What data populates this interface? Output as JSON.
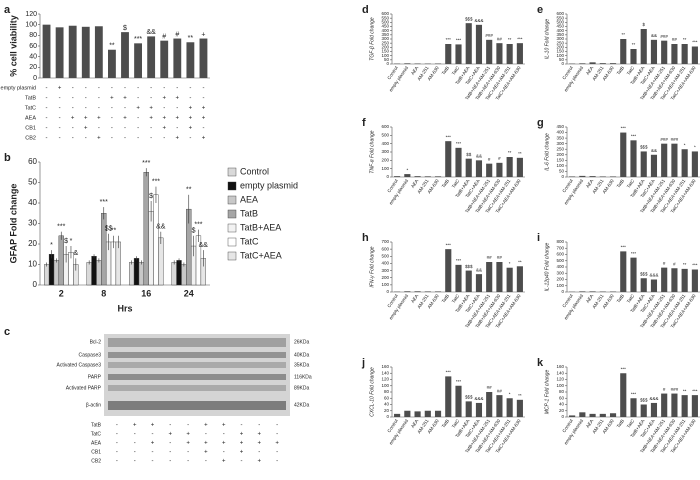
{
  "chart_data": [
    {
      "panel": "a",
      "type": "bar",
      "y_label": "% cell viability",
      "ylim": [
        0,
        120
      ],
      "yticks": [
        0,
        20,
        40,
        60,
        80,
        100,
        120
      ],
      "color": "#4d4d4d",
      "values": [
        100,
        95,
        98,
        96,
        97,
        53,
        86,
        65,
        78,
        70,
        74,
        67,
        74
      ],
      "annotations": [
        null,
        null,
        null,
        null,
        null,
        "**",
        "$",
        "***",
        "&&",
        "#",
        "#",
        "**",
        "+"
      ],
      "treatments": [
        {
          "name": "empty plasmid",
          "signs": [
            "-",
            "+",
            "-",
            "-",
            "-",
            "-",
            "-",
            "-",
            "-",
            "-",
            "-",
            "-",
            "-"
          ]
        },
        {
          "name": "TatB",
          "signs": [
            "-",
            "-",
            "-",
            "-",
            "-",
            "+",
            "+",
            "-",
            "-",
            "+",
            "+",
            "-",
            "-"
          ]
        },
        {
          "name": "TatC",
          "signs": [
            "-",
            "-",
            "-",
            "-",
            "-",
            "-",
            "-",
            "+",
            "+",
            "-",
            "-",
            "+",
            "+"
          ]
        },
        {
          "name": "AEA",
          "signs": [
            "-",
            "-",
            "+",
            "+",
            "+",
            "-",
            "+",
            "-",
            "+",
            "+",
            "+",
            "+",
            "+"
          ]
        },
        {
          "name": "CB1",
          "signs": [
            "-",
            "-",
            "-",
            "+",
            "-",
            "-",
            "-",
            "-",
            "-",
            "+",
            "-",
            "+",
            "-"
          ]
        },
        {
          "name": "CB2",
          "signs": [
            "-",
            "-",
            "-",
            "-",
            "+",
            "-",
            "-",
            "-",
            "-",
            "-",
            "+",
            "-",
            "+"
          ]
        }
      ]
    },
    {
      "panel": "b",
      "type": "grouped_bar",
      "y_label": "GFAP Fold change",
      "x_label": "Hrs",
      "ylim": [
        0,
        60
      ],
      "yticks": [
        0,
        10,
        20,
        30,
        40,
        50,
        60
      ],
      "categories": [
        "2",
        "8",
        "16",
        "24"
      ],
      "series": [
        {
          "name": "Control",
          "color": "#d9d9d9",
          "values": [
            10,
            11,
            11,
            11
          ],
          "errors": [
            1,
            1,
            1,
            1
          ],
          "annotations": [
            null,
            null,
            null,
            null
          ]
        },
        {
          "name": "empty plasmid",
          "color": "#111111",
          "values": [
            15,
            14,
            13,
            12
          ],
          "errors": [
            2,
            1,
            1,
            1
          ],
          "annotations": [
            "*",
            null,
            null,
            null
          ]
        },
        {
          "name": "AEA",
          "color": "#c8c8c8",
          "values": [
            12,
            12,
            11,
            10
          ],
          "errors": [
            1,
            1,
            1,
            1
          ],
          "annotations": [
            null,
            null,
            null,
            null
          ]
        },
        {
          "name": "TatB",
          "color": "#a6a6a6",
          "values": [
            24,
            35,
            55,
            37
          ],
          "errors": [
            2,
            3,
            2,
            7
          ],
          "annotations": [
            "***",
            "***",
            "***",
            "**"
          ]
        },
        {
          "name": "TatB+AEA",
          "color": "#f2f2f2",
          "values": [
            15,
            21,
            36,
            19
          ],
          "errors": [
            4,
            4,
            5,
            5
          ],
          "annotations": [
            "$",
            "$$",
            "$",
            "$"
          ]
        },
        {
          "name": "TatC",
          "color": "#ffffff",
          "values": [
            16,
            21,
            44,
            24
          ],
          "errors": [
            3,
            3,
            4,
            3
          ],
          "annotations": [
            "*",
            "**",
            "***",
            "***"
          ]
        },
        {
          "name": "TatC+AEA",
          "color": "#e6e6e6",
          "values": [
            10,
            21,
            23,
            13
          ],
          "errors": [
            3,
            3,
            3,
            4
          ],
          "annotations": [
            "&",
            null,
            "&&",
            "&&"
          ]
        }
      ]
    },
    {
      "panel": "d",
      "type": "bar",
      "y_label": "TGF-β Fold change",
      "ylim": [
        0,
        600
      ],
      "yticks": [
        0,
        50,
        100,
        150,
        200,
        250,
        300,
        350,
        400,
        450,
        500,
        550,
        600
      ],
      "color": "#4d4d4d",
      "categories": [
        "Control",
        "empty plasmid",
        "AEA",
        "AM-251",
        "AM-630",
        "TatB",
        "TatC",
        "TatB+AEA",
        "TatC+AEA",
        "TatB+AEA+AM-251",
        "TatB+AEA+AM-630",
        "TatC+AEA+AM-251",
        "TatC+AEA+AM-630"
      ],
      "values": [
        5,
        8,
        6,
        5,
        6,
        240,
        235,
        490,
        470,
        290,
        250,
        240,
        250
      ],
      "annotations": [
        null,
        null,
        null,
        null,
        null,
        "***",
        "***",
        "$$$",
        "&&&",
        "###",
        "##",
        "**",
        "***"
      ]
    },
    {
      "panel": "e",
      "type": "bar",
      "y_label": "IL-10 Fold change",
      "ylim": [
        0,
        600
      ],
      "yticks": [
        0,
        50,
        100,
        150,
        200,
        250,
        300,
        350,
        400,
        450,
        500,
        550,
        600
      ],
      "color": "#4d4d4d",
      "categories": [
        "Control",
        "empty plasmid",
        "AEA",
        "AM-251",
        "AM-630",
        "TatB",
        "TatC",
        "TatB+AEA",
        "TatC+AEA",
        "TatB+AEA+AM-251",
        "TatB+AEA+AM-630",
        "TatC+AEA+AM-251",
        "TatC+AEA+AM-630"
      ],
      "values": [
        5,
        8,
        20,
        10,
        10,
        300,
        180,
        420,
        290,
        280,
        240,
        240,
        210
      ],
      "annotations": [
        null,
        null,
        null,
        null,
        null,
        "**",
        "**",
        "$",
        "&&",
        "###",
        "##",
        "**",
        "***"
      ]
    },
    {
      "panel": "f",
      "type": "bar",
      "y_label": "TNF-α Fold change",
      "ylim": [
        0,
        600
      ],
      "yticks": [
        0,
        100,
        200,
        300,
        400,
        500,
        600
      ],
      "color": "#4d4d4d",
      "categories": [
        "Control",
        "empty plasmid",
        "AEA",
        "AM-251",
        "AM-630",
        "TatB",
        "TatC",
        "TatB+AEA",
        "TatC+AEA",
        "TatB+AEA+AM-251",
        "TatB+AEA+AM-630",
        "TatC+AEA+AM-251",
        "TatC+AEA+AM-630"
      ],
      "values": [
        10,
        35,
        10,
        8,
        8,
        430,
        350,
        220,
        200,
        160,
        170,
        240,
        230
      ],
      "annotations": [
        null,
        "*",
        null,
        null,
        null,
        "***",
        "***",
        "$$",
        "&&",
        "#",
        "#",
        "**",
        "**"
      ]
    },
    {
      "panel": "g",
      "type": "bar",
      "y_label": "IL-6 Fold change",
      "ylim": [
        0,
        450
      ],
      "yticks": [
        0,
        50,
        100,
        150,
        200,
        250,
        300,
        350,
        400,
        450
      ],
      "color": "#4d4d4d",
      "categories": [
        "Control",
        "empty plasmid",
        "AEA",
        "AM-251",
        "AM-630",
        "TatB",
        "TatC",
        "TatB+AEA",
        "TatC+AEA",
        "TatB+AEA+AM-251",
        "TatB+AEA+AM-630",
        "TatC+AEA+AM-251",
        "TatC+AEA+AM-630"
      ],
      "values": [
        5,
        10,
        8,
        5,
        5,
        400,
        330,
        230,
        200,
        300,
        300,
        250,
        230
      ],
      "annotations": [
        null,
        null,
        null,
        null,
        null,
        "***",
        "***",
        "$$$",
        "&&",
        "###",
        "###",
        "*",
        "*"
      ]
    },
    {
      "panel": "h",
      "type": "bar",
      "y_label": "IFN-γ Fold change",
      "ylim": [
        0,
        700
      ],
      "yticks": [
        0,
        100,
        200,
        300,
        400,
        500,
        600,
        700
      ],
      "color": "#4d4d4d",
      "categories": [
        "Control",
        "empty plasmid",
        "AEA",
        "AM-251",
        "AM-630",
        "TatB",
        "TatC",
        "TatB+AEA",
        "TatC+AEA",
        "TatB+AEA+AM-251",
        "TatB+AEA+AM-630",
        "TatC+AEA+AM-251",
        "TatC+AEA+AM-630"
      ],
      "values": [
        5,
        10,
        10,
        8,
        8,
        600,
        380,
        300,
        250,
        420,
        420,
        340,
        360
      ],
      "annotations": [
        null,
        null,
        null,
        null,
        null,
        "***",
        "***",
        "$$$",
        "&&",
        "##",
        "##",
        "*",
        "**"
      ]
    },
    {
      "panel": "i",
      "type": "bar",
      "y_label": "IL-12p40 Fold change",
      "ylim": [
        0,
        800
      ],
      "yticks": [
        0,
        100,
        200,
        300,
        400,
        500,
        600,
        700,
        800
      ],
      "color": "#4d4d4d",
      "categories": [
        "Control",
        "empty plasmid",
        "AEA",
        "AM-251",
        "AM-630",
        "TatB",
        "TatC",
        "TatB+AEA",
        "TatC+AEA",
        "TatB+AEA+AM-251",
        "TatB+AEA+AM-630",
        "TatC+AEA+AM-251",
        "TatC+AEA+AM-630"
      ],
      "values": [
        5,
        10,
        10,
        8,
        8,
        650,
        550,
        220,
        200,
        390,
        380,
        370,
        360
      ],
      "annotations": [
        null,
        null,
        null,
        null,
        null,
        "***",
        "***",
        "$$$",
        "&&&",
        "#",
        "#",
        "**",
        "***"
      ]
    },
    {
      "panel": "j",
      "type": "bar",
      "y_label": "CXCL-10 Fold change",
      "ylim": [
        0,
        160
      ],
      "yticks": [
        0,
        20,
        40,
        60,
        80,
        100,
        120,
        140,
        160
      ],
      "color": "#4d4d4d",
      "categories": [
        "Control",
        "empty plasmid",
        "AEA",
        "AM-251",
        "AM-630",
        "TatB",
        "TatC",
        "TatB+AEA",
        "TatC+AEA",
        "TatB+AEA+AM-251",
        "TatB+AEA+AM-630",
        "TatC+AEA+AM-251",
        "TatC+AEA+AM-630"
      ],
      "values": [
        10,
        20,
        18,
        20,
        20,
        130,
        100,
        50,
        45,
        80,
        70,
        60,
        55
      ],
      "annotations": [
        null,
        null,
        null,
        null,
        null,
        "***",
        "***",
        "$$$",
        "&&&",
        "##",
        "##",
        "*",
        "**"
      ]
    },
    {
      "panel": "k",
      "type": "bar",
      "y_label": "MCP-1 Fold change",
      "ylim": [
        0,
        160
      ],
      "yticks": [
        0,
        20,
        40,
        60,
        80,
        100,
        120,
        140,
        160
      ],
      "color": "#4d4d4d",
      "categories": [
        "Control",
        "empty plasmid",
        "AEA",
        "AM-251",
        "AM-630",
        "TatB",
        "TatC",
        "TatB+AEA",
        "TatC+AEA",
        "TatB+AEA+AM-251",
        "TatB+AEA+AM-630",
        "TatC+AEA+AM-251",
        "TatC+AEA+AM-630"
      ],
      "values": [
        5,
        15,
        10,
        10,
        12,
        140,
        60,
        40,
        45,
        75,
        75,
        70,
        70
      ],
      "annotations": [
        null,
        null,
        null,
        null,
        null,
        "***",
        "***",
        "$$$",
        "&&&",
        "#",
        "###",
        "**",
        "***"
      ]
    }
  ],
  "blot": {
    "panel": "c",
    "bands": [
      {
        "label": "Bcl-2",
        "size": "26KDa"
      },
      {
        "label": "Caspase3",
        "size": "40KDa"
      },
      {
        "label": "Activated Caspase3",
        "size": "35KDa"
      },
      {
        "label": "PARP",
        "size": "116KDa"
      },
      {
        "label": "Activated PARP",
        "size": "89KDa"
      },
      {
        "label": "β-actin",
        "size": "42KDa"
      }
    ],
    "treatments": [
      {
        "name": "TatB",
        "signs": [
          "-",
          "+",
          "+",
          "-",
          "-",
          "+",
          "+",
          "-",
          "-",
          "-"
        ]
      },
      {
        "name": "TatC",
        "signs": [
          "-",
          "-",
          "-",
          "+",
          "+",
          "-",
          "-",
          "+",
          "+",
          "-"
        ]
      },
      {
        "name": "AEA",
        "signs": [
          "-",
          "-",
          "+",
          "-",
          "+",
          "+",
          "+",
          "+",
          "+",
          "+"
        ]
      },
      {
        "name": "CB1",
        "signs": [
          "-",
          "-",
          "-",
          "-",
          "-",
          "+",
          "-",
          "+",
          "-",
          "-"
        ]
      },
      {
        "name": "CB2",
        "signs": [
          "-",
          "-",
          "-",
          "-",
          "-",
          "-",
          "+",
          "-",
          "+",
          "-"
        ]
      }
    ]
  }
}
